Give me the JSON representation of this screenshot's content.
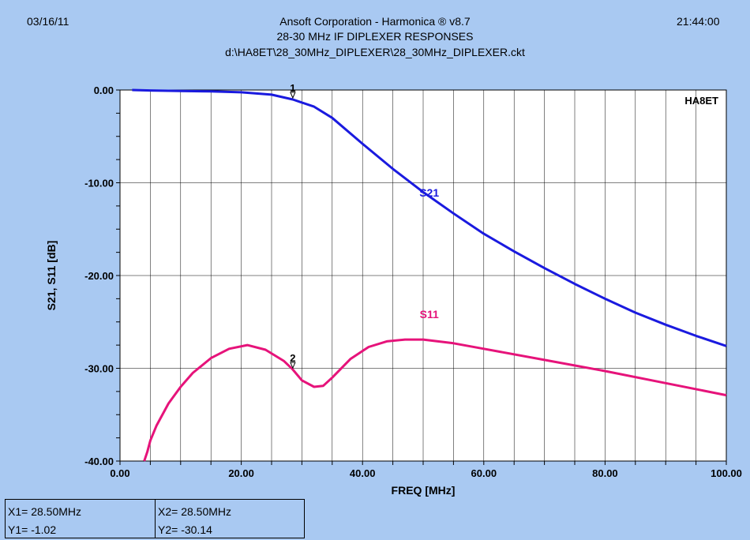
{
  "header": {
    "date": "03/16/11",
    "time": "21:44:00",
    "app_title": "Ansoft Corporation - Harmonica ® v8.7",
    "plot_title": "28-30 MHz IF DIPLEXER RESPONSES",
    "file_path": "d:\\HA8ET\\28_30MHz_DIPLEXER\\28_30MHz_DIPLEXER.ckt"
  },
  "chart_data": {
    "type": "line",
    "xlabel": "FREQ [MHz]",
    "ylabel": "S21, S11  [dB]",
    "xlim": [
      0,
      100
    ],
    "ylim": [
      -40,
      0
    ],
    "x_ticks": [
      "0.00",
      "20.00",
      "40.00",
      "60.00",
      "80.00",
      "100.00"
    ],
    "y_ticks": [
      "0.00",
      "-10.00",
      "-20.00",
      "-30.00",
      "-40.00"
    ],
    "grid": true,
    "annotation": "HA8ET",
    "series": [
      {
        "name": "S21",
        "color": "#1a1adf",
        "x": [
          2,
          5,
          10,
          15,
          20,
          25,
          28.5,
          32,
          35,
          40,
          45,
          50,
          55,
          60,
          65,
          70,
          75,
          80,
          85,
          90,
          95,
          100
        ],
        "y": [
          0,
          -0.05,
          -0.1,
          -0.15,
          -0.25,
          -0.5,
          -1.02,
          -1.8,
          -3.0,
          -5.8,
          -8.5,
          -11.0,
          -13.3,
          -15.5,
          -17.4,
          -19.2,
          -20.9,
          -22.5,
          -24.0,
          -25.3,
          -26.5,
          -27.6
        ]
      },
      {
        "name": "S11",
        "color": "#e6137a",
        "x": [
          4,
          4.5,
          5,
          6,
          8,
          10,
          12,
          15,
          18,
          21,
          24,
          27,
          28.5,
          30,
          32,
          33.5,
          35,
          38,
          41,
          44,
          47,
          50,
          55,
          60,
          70,
          80,
          90,
          100
        ],
        "y": [
          -40,
          -39,
          -37.8,
          -36.2,
          -33.8,
          -32.0,
          -30.5,
          -28.9,
          -27.9,
          -27.5,
          -28.0,
          -29.2,
          -30.14,
          -31.3,
          -32.0,
          -31.9,
          -31.0,
          -29.0,
          -27.7,
          -27.1,
          -26.9,
          -26.9,
          -27.3,
          -27.9,
          -29.1,
          -30.3,
          -31.6,
          -32.9
        ]
      }
    ],
    "markers": [
      {
        "label": "1",
        "x": 28.5,
        "y": -1.02
      },
      {
        "label": "2",
        "x": 28.5,
        "y": -30.14
      }
    ]
  },
  "readout": {
    "x1": "X1= 28.50MHz",
    "y1": "Y1= -1.02",
    "x2": "X2= 28.50MHz",
    "y2": "Y2= -30.14"
  }
}
